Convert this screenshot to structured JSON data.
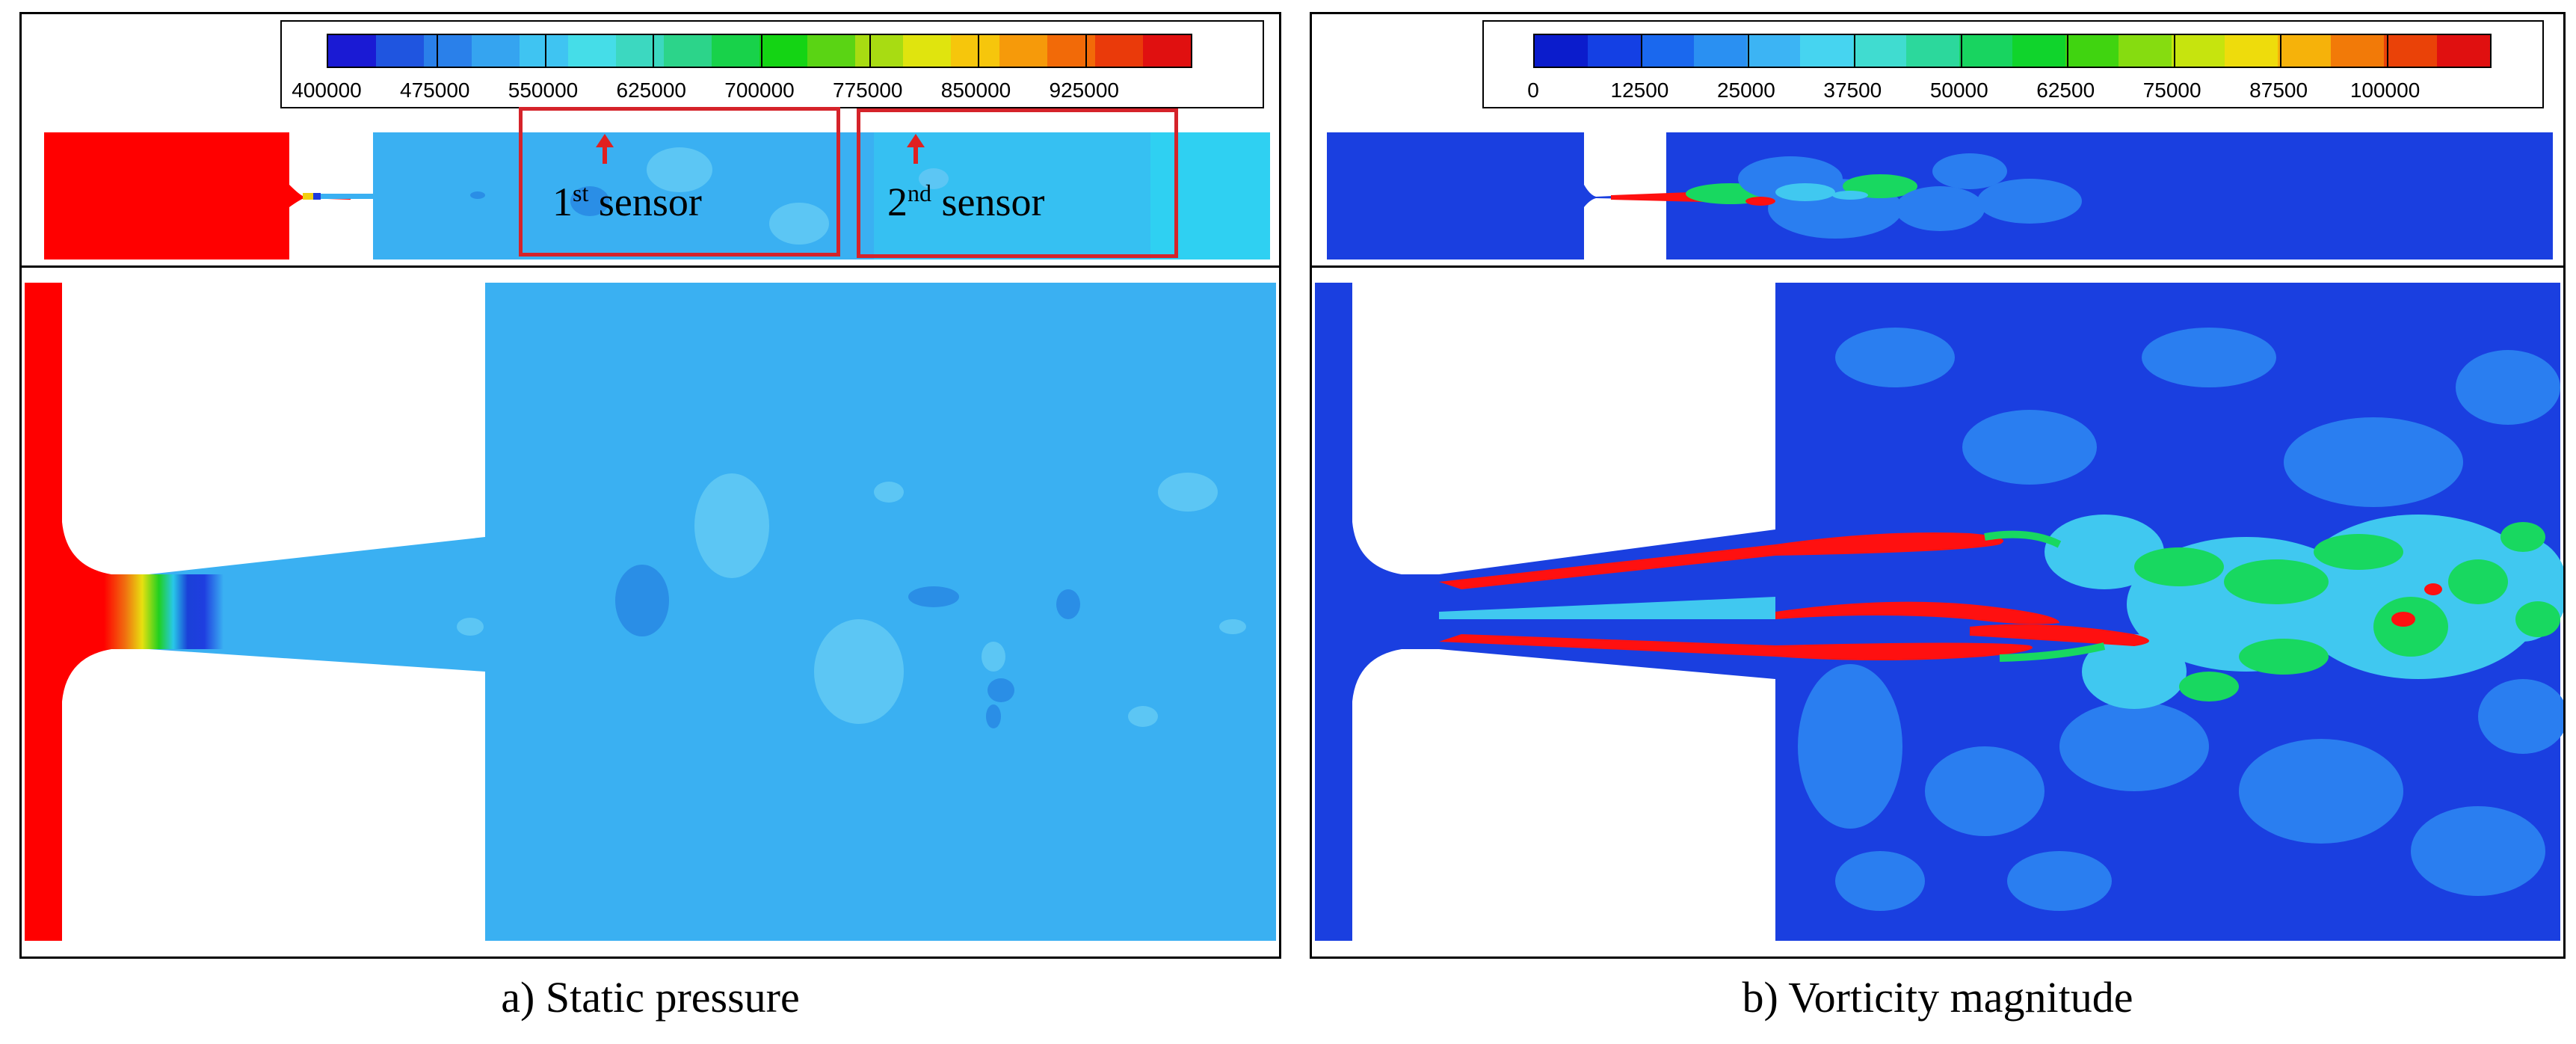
{
  "figure": {
    "panels": [
      {
        "id": "a",
        "caption": "a) Static pressure",
        "colorbar": {
          "tick_labels": [
            "400000",
            "475000",
            "550000",
            "625000",
            "700000",
            "775000",
            "850000",
            "925000"
          ],
          "colors": [
            "#1a1ad4",
            "#1f55e0",
            "#2a80ea",
            "#35a4f0",
            "#3fc4f2",
            "#45dde8",
            "#3cd8c0",
            "#2cd48a",
            "#18d24a",
            "#14d414",
            "#5ad414",
            "#a8dc12",
            "#e0e40e",
            "#f6c60c",
            "#f69a0a",
            "#f26a08",
            "#ea3a0a",
            "#e01010"
          ]
        },
        "annotations": {
          "sensor1": {
            "ordinal": "1",
            "suffix": "st",
            "word": "sensor"
          },
          "sensor2": {
            "ordinal": "2",
            "suffix": "nd",
            "word": "sensor"
          }
        },
        "field_colors": {
          "inlet": "#ff0000",
          "pipe": "#3ab0f2",
          "pipe_light": "#2fd0f2",
          "blob_dark": "#2a8ee6",
          "blob_light": "#5cc6f4"
        }
      },
      {
        "id": "b",
        "caption": "b) Vorticity magnitude",
        "colorbar": {
          "tick_labels": [
            "0",
            "12500",
            "25000",
            "37500",
            "50000",
            "62500",
            "75000",
            "87500",
            "100000"
          ],
          "colors": [
            "#0b1ccc",
            "#1440e4",
            "#1a68ee",
            "#2a90f2",
            "#3cb4f4",
            "#46d4f0",
            "#40dcd0",
            "#2cd89c",
            "#18d460",
            "#10d42c",
            "#40d410",
            "#86dc10",
            "#c6e40e",
            "#eedc0c",
            "#f6b20a",
            "#f27a08",
            "#ea4208",
            "#e01010"
          ]
        },
        "field_colors": {
          "background": "#1a3fe0",
          "low": "#2a7ef0",
          "mid": "#40c8f0",
          "high": "#18d860",
          "peak": "#ff1010"
        }
      }
    ]
  }
}
